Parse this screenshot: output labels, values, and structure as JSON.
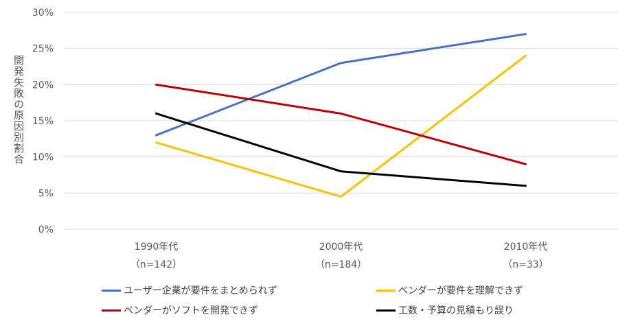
{
  "chart_data": {
    "type": "line",
    "title": "",
    "xlabel": "",
    "ylabel": "開発失敗の原因別割合",
    "categories": [
      "1990年代",
      "2000年代",
      "2010年代"
    ],
    "category_sublabels": [
      "（n=142）",
      "（n=184）",
      "（n=33）"
    ],
    "ylim": [
      0,
      30
    ],
    "yticks": [
      0,
      5,
      10,
      15,
      20,
      25,
      30
    ],
    "ytick_labels": [
      "0%",
      "5%",
      "10%",
      "15%",
      "20%",
      "25%",
      "30%"
    ],
    "grid": true,
    "legend_position": "bottom",
    "series": [
      {
        "name": "ユーザー企業が要件をまとめられず",
        "color": "#4472C4",
        "values": [
          13,
          23,
          27
        ]
      },
      {
        "name": "ベンダーが要件を理解できず",
        "color": "#FFC000",
        "values": [
          12,
          4.5,
          24
        ]
      },
      {
        "name": "ベンダーがソフトを開発できず",
        "color": "#C00000",
        "values": [
          20,
          16,
          9
        ]
      },
      {
        "name": "工数・予算の見積もり誤り",
        "color": "#000000",
        "values": [
          16,
          8,
          6
        ]
      }
    ]
  }
}
